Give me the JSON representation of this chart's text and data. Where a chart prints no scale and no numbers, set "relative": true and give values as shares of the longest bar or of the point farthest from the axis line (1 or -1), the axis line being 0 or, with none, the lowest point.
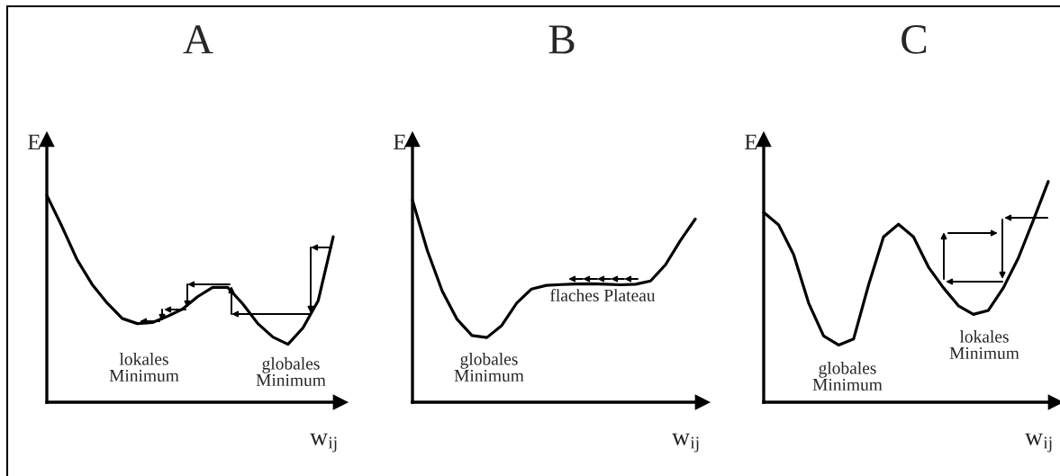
{
  "chart_data": [
    {
      "type": "line",
      "title": "A",
      "ylabel": "E",
      "xlabel": "w$_{ij}$",
      "relative": true,
      "categories": [
        null,
        null,
        null,
        null,
        null,
        null,
        null,
        null,
        null,
        null,
        null,
        null,
        null,
        null,
        null,
        null,
        null,
        null,
        null,
        null
      ],
      "series": [
        {
          "color": "#000000",
          "values": [
            1.0,
            0.85,
            0.69,
            0.57,
            0.48,
            0.405,
            0.38,
            0.385,
            0.415,
            0.45,
            0.51,
            0.555,
            0.555,
            0.475,
            0.38,
            0.315,
            0.28,
            0.36,
            0.49,
            0.8
          ]
        }
      ],
      "annotations": [
        "lokales\nMinimum",
        "globales\nMinimum"
      ]
    },
    {
      "type": "line",
      "title": "B",
      "ylabel": "E",
      "xlabel": "w$_{ij}$",
      "relative": true,
      "categories": [
        null,
        null,
        null,
        null,
        null,
        null,
        null,
        null,
        null,
        null,
        null,
        null,
        null,
        null,
        null,
        null,
        null,
        null,
        null,
        null
      ],
      "series": [
        {
          "color": "#000000",
          "values": [
            1.0,
            0.75,
            0.55,
            0.41,
            0.33,
            0.32,
            0.38,
            0.49,
            0.56,
            0.578,
            0.582,
            0.585,
            0.586,
            0.584,
            0.581,
            0.584,
            0.6,
            0.68,
            0.8,
            0.906
          ]
        }
      ],
      "annotations": [
        "flaches Plateau",
        "globales\nMinimum"
      ]
    },
    {
      "type": "line",
      "title": "C",
      "ylabel": "E",
      "xlabel": "w$_{ij}$",
      "relative": true,
      "categories": [
        null,
        null,
        null,
        null,
        null,
        null,
        null,
        null,
        null,
        null,
        null,
        null,
        null,
        null,
        null,
        null,
        null,
        null,
        null,
        null
      ],
      "series": [
        {
          "color": "#000000",
          "values": [
            0.86,
            0.803,
            0.668,
            0.449,
            0.3,
            0.259,
            0.286,
            0.531,
            0.749,
            0.806,
            0.749,
            0.612,
            0.518,
            0.437,
            0.398,
            0.416,
            0.518,
            0.653,
            0.824,
            1.0
          ]
        }
      ],
      "annotations": [
        "globales\nMinimum",
        "lokales\nMinimum"
      ]
    }
  ]
}
